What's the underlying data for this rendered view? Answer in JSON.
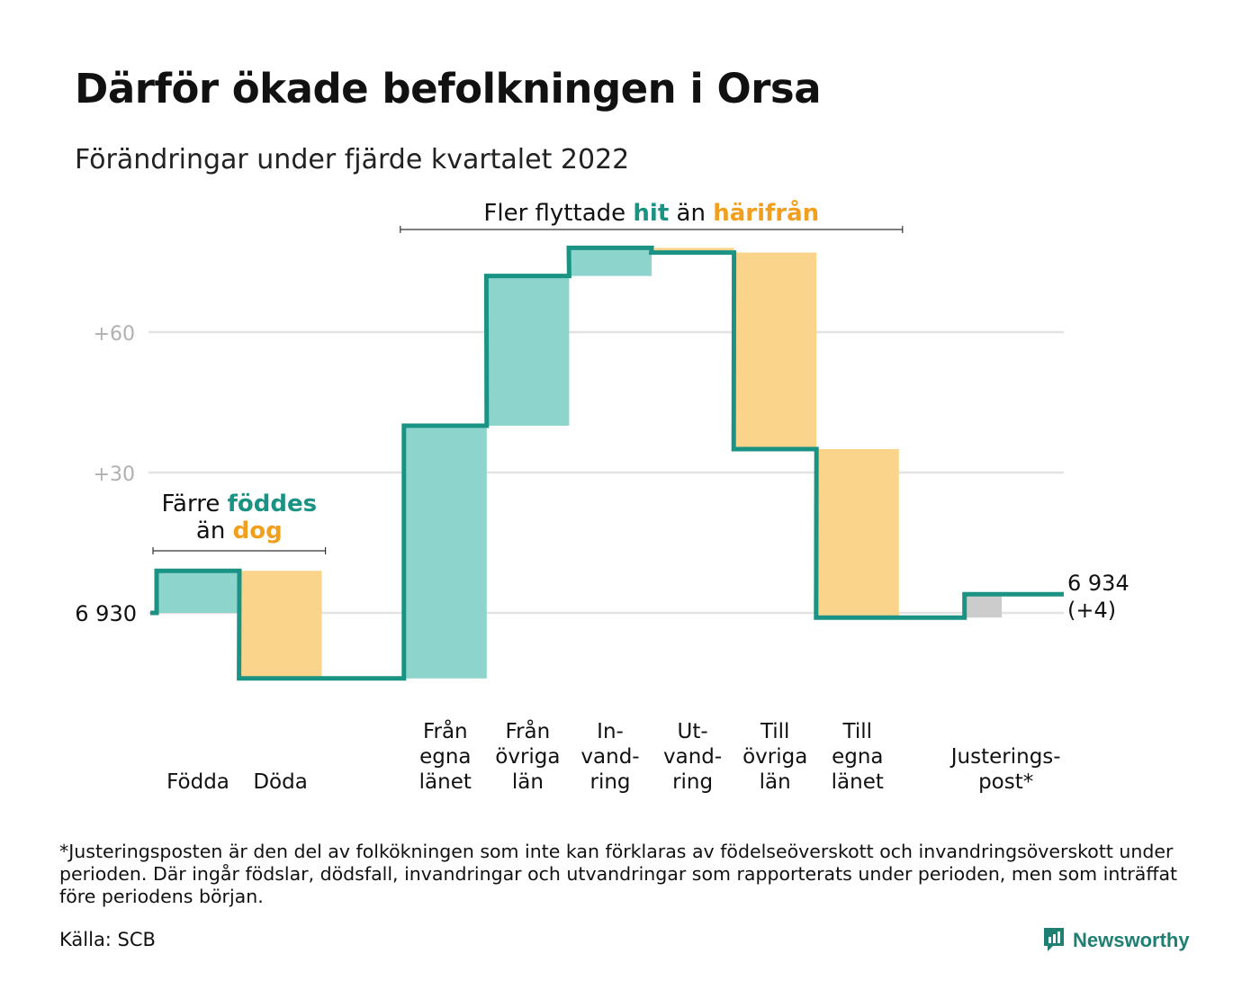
{
  "title": "Därför ökade befolkningen i Orsa",
  "subtitle": "Förändringar under fjärde kvartalet 2022",
  "colors": {
    "increase": "#8dd4cc",
    "decrease": "#fad48b",
    "adjustment": "#cccccc",
    "line": "#1a9384",
    "grid": "#e2e2e2",
    "teal_text": "#1a9384",
    "orange_text": "#f29f1e",
    "axis_label": "#b0b0b0"
  },
  "chart_data": {
    "type": "waterfall",
    "start_value": 6930,
    "start_label": "6 930",
    "end_value": 6934,
    "end_label_value": "6 934",
    "end_label_change": "(+4)",
    "ylim": [
      6915,
      6950
    ],
    "gridlines": [
      {
        "value": 0,
        "label": "6 930",
        "dark": true
      },
      {
        "value": 30,
        "label": "+30",
        "dark": false
      },
      {
        "value": 60,
        "label": "+60",
        "dark": false
      }
    ],
    "steps": [
      {
        "label": [
          "Födda"
        ],
        "change": 9,
        "kind": "increase",
        "slot": 0
      },
      {
        "label": [
          "Döda"
        ],
        "change": -23,
        "kind": "decrease",
        "slot": 1
      },
      {
        "label": [
          "Från",
          "egna",
          "länet"
        ],
        "change": 54,
        "kind": "increase",
        "slot": 3
      },
      {
        "label": [
          "Från",
          "övriga",
          "län"
        ],
        "change": 32,
        "kind": "increase",
        "slot": 4
      },
      {
        "label": [
          "In-",
          "vand-",
          "ring"
        ],
        "change": 6,
        "kind": "increase",
        "slot": 5
      },
      {
        "label": [
          "Ut-",
          "vand-",
          "ring"
        ],
        "change": -1,
        "kind": "decrease",
        "slot": 6
      },
      {
        "label": [
          "Till",
          "övriga",
          "län"
        ],
        "change": -42,
        "kind": "decrease",
        "slot": 7
      },
      {
        "label": [
          "Till",
          "egna",
          "länet"
        ],
        "change": -36,
        "kind": "decrease",
        "slot": 8
      },
      {
        "label": [
          "Justerings-",
          "post*"
        ],
        "change": 5,
        "kind": "adjustment",
        "slot": 9.8
      }
    ],
    "annotations": [
      {
        "id": "births",
        "lines": [
          [
            {
              "text": "Färre ",
              "color": "dark"
            },
            {
              "text": "föddes",
              "color": "teal"
            }
          ],
          [
            {
              "text": "än ",
              "color": "dark"
            },
            {
              "text": "dog",
              "color": "orange"
            }
          ]
        ],
        "from_slot": 0,
        "to_slot": 1
      },
      {
        "id": "moves",
        "lines": [
          [
            {
              "text": "Fler flyttade ",
              "color": "dark"
            },
            {
              "text": "hit",
              "color": "teal"
            },
            {
              "text": " än ",
              "color": "dark"
            },
            {
              "text": "härifrån",
              "color": "orange"
            }
          ]
        ],
        "from_slot": 3,
        "to_slot": 8
      }
    ]
  },
  "footnote": "*Justeringsposten är den del av folkökningen som inte kan förklaras av födelseöverskott och invandringsöverskott under perioden. Där ingår födslar, dödsfall, invandringar och utvandringar som rapporterats under perioden, men som inträffat före periodens början.",
  "source": "Källa: SCB",
  "brand": "Newsworthy",
  "brand_icon": "newsworthy-logo-icon"
}
